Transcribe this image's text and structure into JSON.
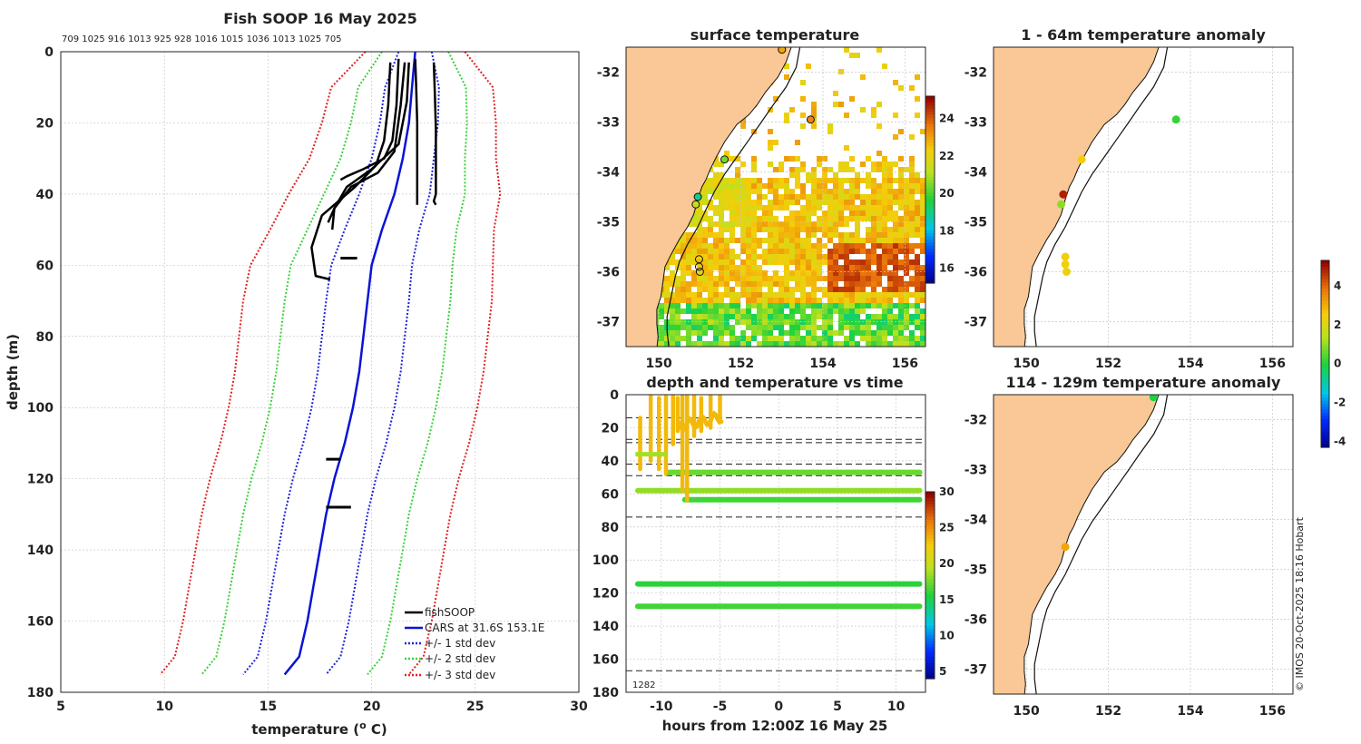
{
  "figure": {
    "footer": "© IMOS 20-Oct-2025 18:16 Hobart"
  },
  "chart_data": [
    {
      "id": "profile",
      "type": "line",
      "title": "Fish SOOP 16 May 2025",
      "top_labels": "709 1025 916 1013 925 928 1016 1015 1036 1013 1025 705",
      "xlabel": "temperature (o C)",
      "xlabel_main": "temperature (",
      "xlabel_sup": "o",
      "xlabel_end": " C)",
      "ylabel": "depth (m)",
      "xlim": [
        5,
        30
      ],
      "ylim": [
        180,
        0
      ],
      "xticks": [
        "5",
        "10",
        "15",
        "20",
        "25",
        "30"
      ],
      "yticks": [
        "0",
        "20",
        "40",
        "60",
        "80",
        "100",
        "120",
        "140",
        "160",
        "180"
      ],
      "cars_depth": [
        0,
        10,
        20,
        30,
        40,
        50,
        60,
        70,
        80,
        90,
        100,
        110,
        120,
        130,
        140,
        150,
        160,
        170,
        175
      ],
      "cars_temp": [
        22.1,
        21.95,
        21.8,
        21.5,
        21.1,
        20.5,
        20.0,
        19.8,
        19.6,
        19.4,
        19.1,
        18.7,
        18.2,
        17.8,
        17.5,
        17.2,
        16.9,
        16.5,
        15.8
      ],
      "std_dev": [
        0.8,
        1.3,
        1.4,
        1.5,
        1.7,
        1.8,
        1.95,
        2.0,
        2.0,
        2.0,
        2.0,
        2.0,
        2.0,
        2.0,
        2.0,
        2.0,
        2.0,
        2.0,
        2.0
      ],
      "fish_profiles": [
        {
          "temp": [
            22.1,
            22.15,
            22.2,
            22.2,
            22.2,
            22.2,
            22.2
          ],
          "depth": [
            2,
            10,
            20,
            30,
            38,
            42,
            43
          ]
        },
        {
          "temp": [
            23.0,
            23.05,
            23.1,
            23.1,
            23.1,
            23.0,
            23.1
          ],
          "depth": [
            3,
            12,
            22,
            32,
            40,
            42,
            43
          ]
        },
        {
          "temp": [
            21.3,
            21.2,
            21.0,
            20.6,
            19.6,
            18.8,
            18.5
          ],
          "depth": [
            2,
            15,
            25,
            30,
            33,
            35,
            36
          ]
        },
        {
          "temp": [
            21.6,
            21.4,
            21.1,
            20.3,
            19.0,
            18.2,
            17.9
          ],
          "depth": [
            3,
            15,
            28,
            34,
            38,
            44,
            48
          ]
        },
        {
          "temp": [
            21.8,
            21.7,
            21.3,
            20.0,
            18.8,
            18.2,
            18.1
          ],
          "depth": [
            3,
            14,
            26,
            33,
            38,
            44,
            50
          ]
        },
        {
          "temp": [
            20.9,
            20.8,
            20.6,
            20.2,
            19.2,
            17.6,
            17.1,
            17.3,
            18.0
          ],
          "depth": [
            3,
            15,
            25,
            32,
            38,
            46,
            55,
            63,
            64
          ]
        }
      ],
      "fish_noise": [
        {
          "temp": [
            17.8,
            18.5
          ],
          "depth": [
            114.5,
            114.5
          ]
        },
        {
          "temp": [
            17.8,
            19.0
          ],
          "depth": [
            128.0,
            128.0
          ]
        },
        {
          "temp": [
            18.5,
            19.3
          ],
          "depth": [
            58.0,
            58.0
          ]
        }
      ],
      "legend": [
        {
          "label": "fishSOOP",
          "color": "#000000",
          "style": "solid"
        },
        {
          "label": "CARS at 31.6S 153.1E",
          "color": "#0a14d6",
          "style": "solid"
        },
        {
          "label": "+/- 1 std dev",
          "color": "#1d24d9",
          "style": "dotted"
        },
        {
          "label": "+/- 2 std dev",
          "color": "#3ad13a",
          "style": "dotted"
        },
        {
          "label": "+/- 3 std dev",
          "color": "#e12222",
          "style": "dotted"
        }
      ]
    },
    {
      "id": "sst_map",
      "type": "heatmap",
      "title": "surface temperature",
      "xlim": [
        149.2,
        156.5
      ],
      "ylim": [
        -37.5,
        -31.5
      ],
      "xticks": [
        "150",
        "152",
        "154",
        "156"
      ],
      "yticks": [
        "-32",
        "-33",
        "-34",
        "-35",
        "-36",
        "-37"
      ],
      "colorbar_ticks": [
        "16",
        "18",
        "20",
        "22",
        "24"
      ],
      "colorbar_range": [
        15.2,
        25.2
      ],
      "stations": [
        {
          "lon": 153.0,
          "lat": -31.55,
          "temp": 23.0
        },
        {
          "lon": 153.7,
          "lat": -32.95,
          "temp": 23.5
        },
        {
          "lon": 151.6,
          "lat": -33.75,
          "temp": 20.5
        },
        {
          "lon": 150.95,
          "lat": -34.5,
          "temp": 19.0
        },
        {
          "lon": 150.9,
          "lat": -34.65,
          "temp": 21.5
        },
        {
          "lon": 150.98,
          "lat": -35.75,
          "temp": 22.0
        },
        {
          "lon": 150.98,
          "lat": -35.9,
          "temp": 22.0
        },
        {
          "lon": 151.0,
          "lat": -36.0,
          "temp": 22.0
        }
      ]
    },
    {
      "id": "time_depth",
      "type": "scatter",
      "title": "depth and temperature vs time",
      "xlabel": "hours from 12:00Z 16 May 25",
      "xlim": [
        -13,
        12.5
      ],
      "ylim": [
        180,
        0
      ],
      "xticks": [
        "-10",
        "-5",
        "0",
        "5",
        "10"
      ],
      "yticks": [
        "0",
        "20",
        "40",
        "60",
        "80",
        "100",
        "120",
        "140",
        "160",
        "180"
      ],
      "colorbar_ticks": [
        "5",
        "10",
        "15",
        "20",
        "25",
        "30"
      ],
      "colorbar_range": [
        4,
        30
      ],
      "corner_label": "1282",
      "dashed_depths": [
        14,
        29,
        27,
        42,
        49,
        74,
        167
      ],
      "tracks": [
        {
          "depth": 47,
          "temp": 17.5,
          "x0": -9.5,
          "x1": 12
        },
        {
          "depth": 58,
          "temp": 18.5,
          "x0": -12,
          "x1": 12
        },
        {
          "depth": 63.5,
          "temp": 16.5,
          "x0": -8,
          "x1": 12
        },
        {
          "depth": 114.5,
          "temp": 16.0,
          "x0": -12,
          "x1": 12
        },
        {
          "depth": 128,
          "temp": 16.5,
          "x0": -12,
          "x1": 12
        }
      ]
    },
    {
      "id": "anom_upper",
      "type": "scatter",
      "title": "1 - 64m temperature anomaly",
      "xlim": [
        149.2,
        156.5
      ],
      "ylim": [
        -37.5,
        -31.5
      ],
      "xticks": [
        "150",
        "152",
        "154",
        "156"
      ],
      "yticks": [
        "-32",
        "-33",
        "-34",
        "-35",
        "-36",
        "-37"
      ],
      "points": [
        {
          "lon": 153.65,
          "lat": -32.95,
          "anom": 0.2
        },
        {
          "lon": 151.35,
          "lat": -33.75,
          "anom": 2.6
        },
        {
          "lon": 150.9,
          "lat": -34.45,
          "anom": 4.9
        },
        {
          "lon": 150.85,
          "lat": -34.65,
          "anom": 1.0
        },
        {
          "lon": 150.95,
          "lat": -35.7,
          "anom": 2.5
        },
        {
          "lon": 150.95,
          "lat": -35.85,
          "anom": 2.5
        },
        {
          "lon": 150.98,
          "lat": -36.0,
          "anom": 2.4
        }
      ]
    },
    {
      "id": "anom_lower",
      "type": "scatter",
      "title": "114 - 129m temperature anomaly",
      "xlim": [
        149.2,
        156.5
      ],
      "ylim": [
        -37.5,
        -31.5
      ],
      "xticks": [
        "150",
        "152",
        "154",
        "156"
      ],
      "yticks": [
        "-32",
        "-33",
        "-34",
        "-35",
        "-36",
        "-37"
      ],
      "points": [
        {
          "lon": 153.1,
          "lat": -31.55,
          "anom": 0.0
        },
        {
          "lon": 150.95,
          "lat": -34.55,
          "anom": 3.2
        }
      ]
    },
    {
      "id": "anom_colorbar",
      "type": "heatmap",
      "colorbar_ticks": [
        "4",
        "2",
        "0",
        "-2",
        "-4"
      ],
      "colorbar_range": [
        -4.3,
        5.3
      ]
    }
  ]
}
